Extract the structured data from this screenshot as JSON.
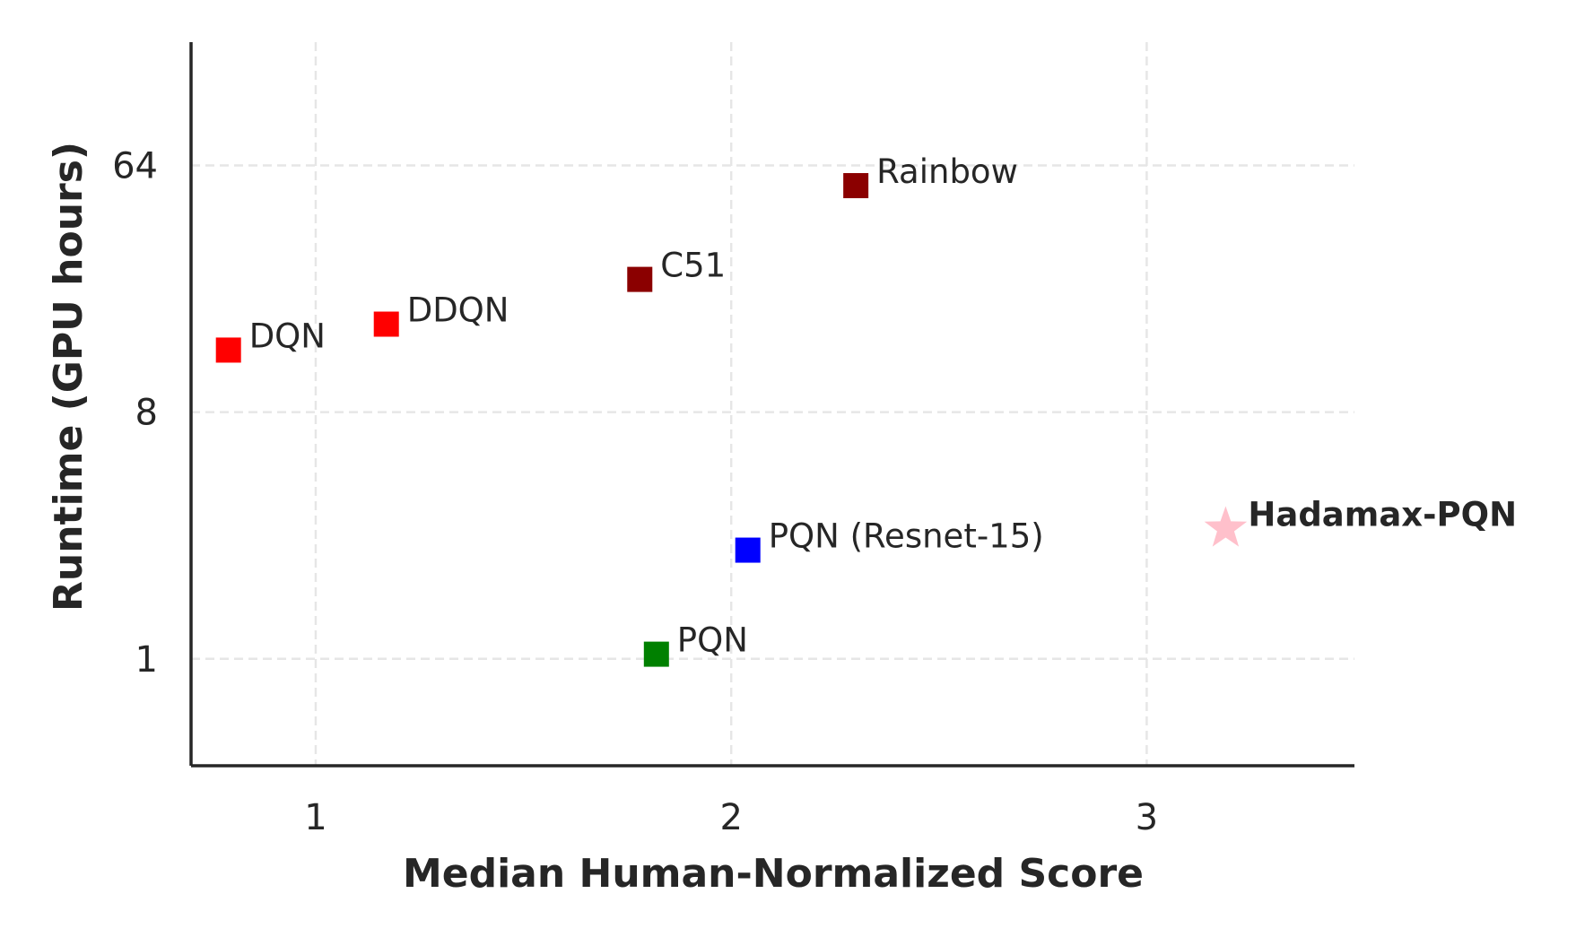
{
  "chart_data": {
    "type": "scatter",
    "title": "",
    "xlabel": "Median Human-Normalized Score",
    "ylabel": "Runtime (GPU hours)",
    "xlim": [
      0.7,
      3.5
    ],
    "ylim_log2": [
      -1.3,
      7.5
    ],
    "yscale": "log2",
    "grid": true,
    "x_ticks": [
      {
        "value": 1,
        "label": "1"
      },
      {
        "value": 2,
        "label": "2"
      },
      {
        "value": 3,
        "label": "3"
      }
    ],
    "y_ticks": [
      {
        "value": 1,
        "label": "1"
      },
      {
        "value": 8,
        "label": "8"
      },
      {
        "value": 64,
        "label": "64"
      }
    ],
    "points": [
      {
        "label": "DQN",
        "x": 0.79,
        "y": 13.5,
        "color": "#ff0000",
        "marker": "square",
        "bold": false
      },
      {
        "label": "DDQN",
        "x": 1.17,
        "y": 16.8,
        "color": "#ff0000",
        "marker": "square",
        "bold": false
      },
      {
        "label": "C51",
        "x": 1.78,
        "y": 24.5,
        "color": "#8b0000",
        "marker": "square",
        "bold": false
      },
      {
        "label": "Rainbow",
        "x": 2.3,
        "y": 54.0,
        "color": "#8b0000",
        "marker": "square",
        "bold": false
      },
      {
        "label": "PQN (Resnet-15)",
        "x": 2.04,
        "y": 2.5,
        "color": "#0000ff",
        "marker": "square",
        "bold": false
      },
      {
        "label": "PQN",
        "x": 1.82,
        "y": 1.04,
        "color": "#008000",
        "marker": "square",
        "bold": false
      },
      {
        "label": "Hadamax-PQN",
        "x": 3.19,
        "y": 3.0,
        "color": "#ffc0cb",
        "marker": "star",
        "bold": true
      }
    ]
  }
}
